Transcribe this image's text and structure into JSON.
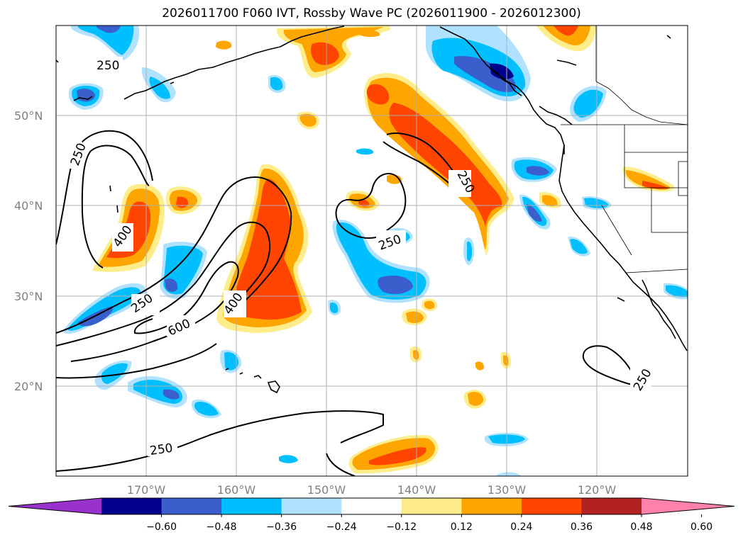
{
  "title": "2026011700 F060 IVT, Rossby Wave PC (2026011900 - 2026012300)",
  "map": {
    "lat_labels": [
      "50°N",
      "40°N",
      "30°N",
      "20°N"
    ],
    "lon_labels": [
      "170°W",
      "160°W",
      "150°W",
      "140°W",
      "130°W",
      "120°W"
    ],
    "contour_labels": [
      "250",
      "250",
      "400",
      "250",
      "600",
      "400",
      "250",
      "250",
      "250",
      "250"
    ]
  },
  "colorbar": {
    "ticks": [
      "−0.60",
      "−0.48",
      "−0.36",
      "−0.24",
      "−0.12",
      "0.12",
      "0.24",
      "0.36",
      "0.48",
      "0.60"
    ],
    "colors": [
      "#9932cc",
      "#00008b",
      "#3a5fcd",
      "#00bfff",
      "#b0e2ff",
      "#ffffff",
      "#ffec8b",
      "#ffa500",
      "#ff4500",
      "#b22222",
      "#ff82ab"
    ]
  }
}
